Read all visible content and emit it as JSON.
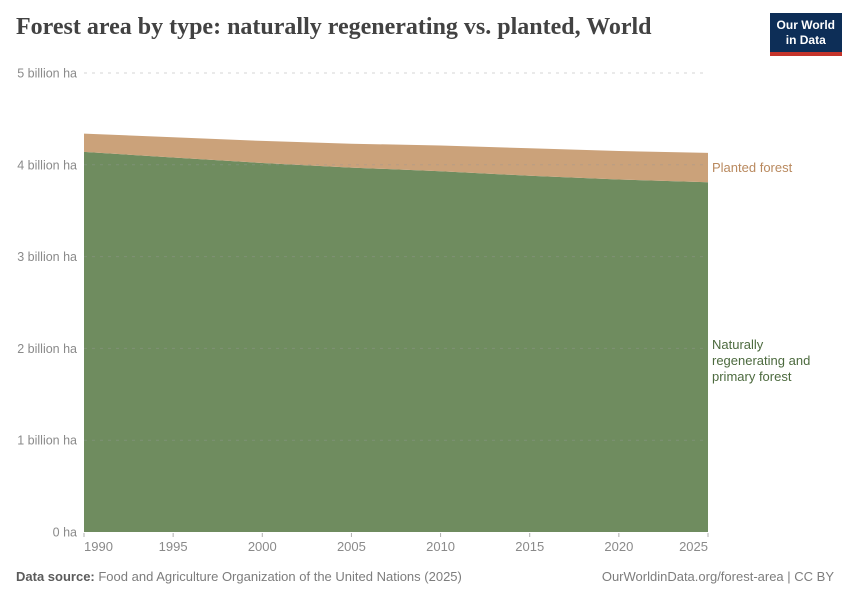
{
  "header": {
    "title": "Forest area by type: naturally regenerating vs. planted, World",
    "logo": {
      "line1": "Our World",
      "line2": "in Data",
      "bg_color": "#0d2e57",
      "bar_color": "#c5342b"
    }
  },
  "chart_data": {
    "type": "area",
    "stacked": true,
    "title": "Forest area by type: naturally regenerating vs. planted, World",
    "xlabel": "",
    "ylabel": "",
    "xlim": [
      1990,
      2025
    ],
    "ylim": [
      0,
      5
    ],
    "grid": "horizontal-dashed",
    "legend_position": "right-of-plot",
    "x": [
      1990,
      1995,
      2000,
      2005,
      2010,
      2015,
      2020,
      2025
    ],
    "series": [
      {
        "name": "Naturally regenerating and primary forest",
        "color": "#6f8c5f",
        "label_color": "#4c6a3e",
        "unit": "billion ha",
        "values": [
          4.14,
          4.08,
          4.02,
          3.97,
          3.93,
          3.88,
          3.84,
          3.81
        ]
      },
      {
        "name": "Planted forest",
        "color": "#cba27a",
        "label_color": "#b9895e",
        "unit": "billion ha",
        "values": [
          0.2,
          0.22,
          0.24,
          0.26,
          0.28,
          0.3,
          0.31,
          0.32
        ]
      }
    ],
    "y_ticks": [
      {
        "value": 0,
        "label": "0 ha"
      },
      {
        "value": 1,
        "label": "1 billion ha"
      },
      {
        "value": 2,
        "label": "2 billion ha"
      },
      {
        "value": 3,
        "label": "3 billion ha"
      },
      {
        "value": 4,
        "label": "4 billion ha"
      },
      {
        "value": 5,
        "label": "5 billion ha"
      }
    ],
    "x_ticks": [
      {
        "value": 1990,
        "label": "1990"
      },
      {
        "value": 1995,
        "label": "1995"
      },
      {
        "value": 2000,
        "label": "2000"
      },
      {
        "value": 2005,
        "label": "2005"
      },
      {
        "value": 2010,
        "label": "2010"
      },
      {
        "value": 2015,
        "label": "2015"
      },
      {
        "value": 2020,
        "label": "2020"
      },
      {
        "value": 2025,
        "label": "2025"
      }
    ]
  },
  "series_labels": {
    "planted": "Planted forest",
    "natural": "Naturally\nregenerating and\nprimary forest"
  },
  "footer": {
    "source_label": "Data source:",
    "source_text": " Food and Agriculture Organization of the United Nations (2025)",
    "right_text": "OurWorldinData.org/forest-area | CC BY"
  }
}
